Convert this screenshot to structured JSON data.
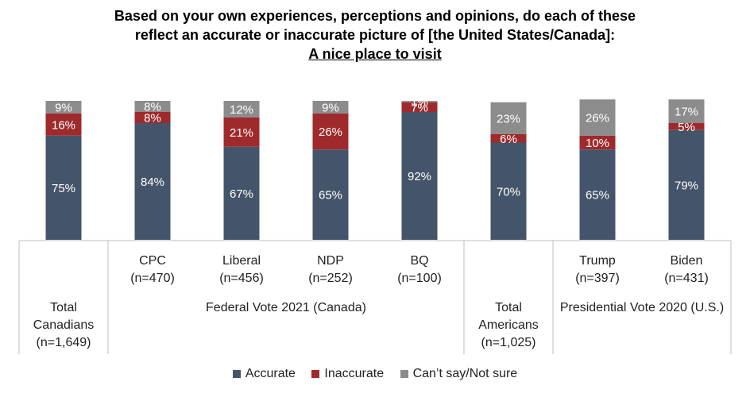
{
  "title": {
    "line1": "Based on your own experiences, perceptions and opinions, do each of these",
    "line2": "reflect an accurate or inaccurate picture of [the United States/Canada]:",
    "line3": "A nice place to visit"
  },
  "colors": {
    "accurate": "#44546A",
    "inaccurate": "#9E2A2B",
    "not_sure": "#8C8C8C"
  },
  "chart_data": {
    "type": "bar",
    "stacked": true,
    "categories": [
      "Total Canadians (n=1,649)",
      "CPC (n=470)",
      "Liberal (n=456)",
      "NDP (n=252)",
      "BQ (n=100)",
      "Total Americans (n=1,025)",
      "Trump (n=397)",
      "Biden (n=431)"
    ],
    "series": [
      {
        "name": "Accurate",
        "values": [
          75,
          84,
          67,
          65,
          92,
          70,
          65,
          79
        ],
        "labels": [
          "75%",
          "84%",
          "67%",
          "65%",
          "92%",
          "70%",
          "65%",
          "79%"
        ]
      },
      {
        "name": "Inaccurate",
        "values": [
          16,
          8,
          21,
          26,
          7,
          6,
          10,
          5
        ],
        "labels": [
          "16%",
          "8%",
          "21%",
          "26%",
          "7%",
          "6%",
          "10%",
          "5%"
        ]
      },
      {
        "name": "Can’t say/Not sure",
        "values": [
          9,
          8,
          12,
          9,
          1,
          23,
          26,
          17
        ],
        "labels": [
          "9%",
          "8%",
          "12%",
          "9%",
          "1%",
          "23%",
          "26%",
          "17%"
        ]
      }
    ],
    "ylim": [
      0,
      100
    ],
    "legend": "bottom"
  },
  "category_table": {
    "cells": [
      {
        "lines": [
          "Total",
          "Canadians",
          "(n=1,649)"
        ]
      },
      {
        "lines": [
          "CPC",
          "(n=470)"
        ]
      },
      {
        "lines": [
          "Liberal",
          "(n=456)"
        ]
      },
      {
        "lines": [
          "NDP",
          "(n=252)"
        ]
      },
      {
        "lines": [
          "BQ",
          "(n=100)"
        ]
      },
      {
        "lines": [
          "Total",
          "Americans",
          "(n=1,025)"
        ]
      },
      {
        "lines": [
          "Trump",
          "(n=397)"
        ]
      },
      {
        "lines": [
          "Biden",
          "(n=431)"
        ]
      }
    ],
    "groups": [
      {
        "label": "Federal Vote 2021 (Canada)"
      },
      {
        "label": "Presidential Vote 2020 (U.S.)"
      }
    ]
  },
  "legend": {
    "accurate": "Accurate",
    "inaccurate": "Inaccurate",
    "not_sure": "Can’t say/Not sure"
  }
}
